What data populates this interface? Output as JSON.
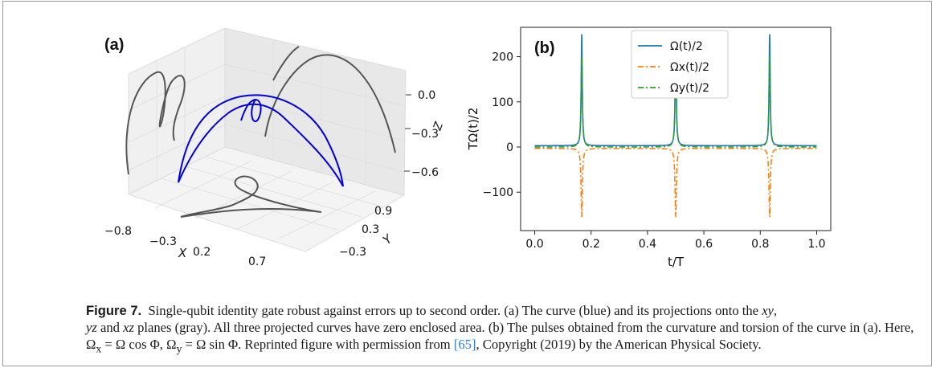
{
  "chart_data": [
    {
      "type": "line3d",
      "panel_label": "(a)",
      "xlabel": "X",
      "ylabel": "Y",
      "zlabel": "Z",
      "x_ticks": [
        "−0.8",
        "−0.3",
        "0.2",
        "0.7"
      ],
      "y_ticks": [
        "−0.3",
        "0.3",
        "0.9"
      ],
      "z_ticks": [
        "0.0",
        "−0.3",
        "−0.6"
      ],
      "series": [
        {
          "role": "curve",
          "color": "#0000dd"
        },
        {
          "role": "projections xy / yz / xz",
          "color": "#555555"
        }
      ]
    },
    {
      "type": "line",
      "panel_label": "(b)",
      "xlabel": "t/T",
      "ylabel": "TΩ(t)/2",
      "xlim": [
        -0.05,
        1.05
      ],
      "ylim": [
        -185,
        265
      ],
      "x_ticks": [
        "0.0",
        "0.2",
        "0.4",
        "0.6",
        "0.8",
        "1.0"
      ],
      "y_ticks": [
        "200",
        "100",
        "0",
        "−100"
      ],
      "x_tick_values": [
        0,
        0.2,
        0.4,
        0.6,
        0.8,
        1.0
      ],
      "y_tick_values": [
        200,
        100,
        0,
        -100
      ],
      "spike_positions": [
        0.1667,
        0.5,
        0.8333
      ],
      "series": [
        {
          "name": "Ω(t)/2",
          "color": "#1f77b4",
          "style": "solid",
          "baseline": 3,
          "peak": 250
        },
        {
          "name": "Ωx(t)/2",
          "color": "#ff7f0e",
          "style": "dashdot",
          "baseline": -3,
          "peak": -155
        },
        {
          "name": "Ωy(t)/2",
          "color": "#2ca02c",
          "style": "dashdot",
          "baseline": 0,
          "peak": 200
        }
      ]
    }
  ],
  "caption": {
    "label": "Figure 7.",
    "text_1": "Single-qubit identity gate robust against errors up to second order. (a) The curve (blue) and its projections onto the ",
    "xy": "xy",
    "comma": ",",
    "yz": "yz",
    "and": " and ",
    "xz": "xz",
    "text_2": " planes (gray). All three projected curves have zero enclosed area. (b) The pulses obtained from the curvature and torsion of the curve in (a). Here, Ω",
    "sub_x": "x",
    "text_3": " = Ω cos Φ, Ω",
    "sub_y": "y",
    "text_4": " = Ω sin Φ. Reprinted figure with permission from ",
    "ref": "[65]",
    "text_5": ", Copyright (2019) by the American Physical Society."
  }
}
